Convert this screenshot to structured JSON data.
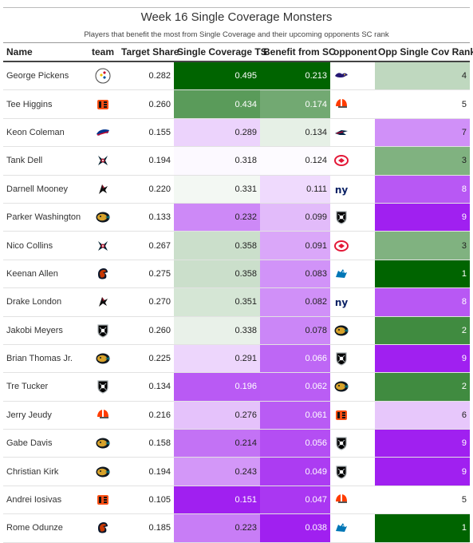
{
  "title": "Week 16 Single Coverage Monsters",
  "subtitle": "Players that benefit the most from Single Coverage and their upcoming opponents SC rank",
  "columns": [
    "Name",
    "team",
    "Target Share",
    "Single Coverage TS",
    "Benefit from SC",
    "opponent",
    "Opp Single Cov Rank"
  ],
  "rows": [
    {
      "name": "George Pickens",
      "team": "steelers-logo",
      "target_share": "0.282",
      "sc_ts": "0.495",
      "benefit": "0.213",
      "opponent": "ravens-logo",
      "opp_rank": "4"
    },
    {
      "name": "Tee Higgins",
      "team": "bengals-logo",
      "target_share": "0.260",
      "sc_ts": "0.434",
      "benefit": "0.174",
      "opponent": "browns-logo",
      "opp_rank": "5"
    },
    {
      "name": "Keon Coleman",
      "team": "bills-logo",
      "target_share": "0.155",
      "sc_ts": "0.289",
      "benefit": "0.134",
      "opponent": "patriots-logo",
      "opp_rank": "7"
    },
    {
      "name": "Tank Dell",
      "team": "texans-logo",
      "target_share": "0.194",
      "sc_ts": "0.318",
      "benefit": "0.124",
      "opponent": "chiefs-logo",
      "opp_rank": "3"
    },
    {
      "name": "Darnell Mooney",
      "team": "falcons-logo",
      "target_share": "0.220",
      "sc_ts": "0.331",
      "benefit": "0.111",
      "opponent": "giants-logo",
      "opp_rank": "8"
    },
    {
      "name": "Parker Washington",
      "team": "jaguars-logo",
      "target_share": "0.133",
      "sc_ts": "0.232",
      "benefit": "0.099",
      "opponent": "raiders-logo",
      "opp_rank": "9"
    },
    {
      "name": "Nico Collins",
      "team": "texans-logo",
      "target_share": "0.267",
      "sc_ts": "0.358",
      "benefit": "0.091",
      "opponent": "chiefs-logo",
      "opp_rank": "3"
    },
    {
      "name": "Keenan Allen",
      "team": "bears-logo",
      "target_share": "0.275",
      "sc_ts": "0.358",
      "benefit": "0.083",
      "opponent": "lions-logo",
      "opp_rank": "1"
    },
    {
      "name": "Drake London",
      "team": "falcons-logo",
      "target_share": "0.270",
      "sc_ts": "0.351",
      "benefit": "0.082",
      "opponent": "giants-logo",
      "opp_rank": "8"
    },
    {
      "name": "Jakobi Meyers",
      "team": "raiders-logo",
      "target_share": "0.260",
      "sc_ts": "0.338",
      "benefit": "0.078",
      "opponent": "jaguars-logo",
      "opp_rank": "2"
    },
    {
      "name": "Brian Thomas Jr.",
      "team": "jaguars-logo",
      "target_share": "0.225",
      "sc_ts": "0.291",
      "benefit": "0.066",
      "opponent": "raiders-logo",
      "opp_rank": "9"
    },
    {
      "name": "Tre Tucker",
      "team": "raiders-logo",
      "target_share": "0.134",
      "sc_ts": "0.196",
      "benefit": "0.062",
      "opponent": "jaguars-logo",
      "opp_rank": "2"
    },
    {
      "name": "Jerry Jeudy",
      "team": "browns-logo",
      "target_share": "0.216",
      "sc_ts": "0.276",
      "benefit": "0.061",
      "opponent": "bengals-logo",
      "opp_rank": "6"
    },
    {
      "name": "Gabe Davis",
      "team": "jaguars-logo",
      "target_share": "0.158",
      "sc_ts": "0.214",
      "benefit": "0.056",
      "opponent": "raiders-logo",
      "opp_rank": "9"
    },
    {
      "name": "Christian Kirk",
      "team": "jaguars-logo",
      "target_share": "0.194",
      "sc_ts": "0.243",
      "benefit": "0.049",
      "opponent": "raiders-logo",
      "opp_rank": "9"
    },
    {
      "name": "Andrei Iosivas",
      "team": "bengals-logo",
      "target_share": "0.105",
      "sc_ts": "0.151",
      "benefit": "0.047",
      "opponent": "browns-logo",
      "opp_rank": "5"
    },
    {
      "name": "Rome Odunze",
      "team": "bears-logo",
      "target_share": "0.185",
      "sc_ts": "0.223",
      "benefit": "0.038",
      "opponent": "lions-logo",
      "opp_rank": "1"
    }
  ],
  "chart_data": {
    "type": "table",
    "title": "Week 16 Single Coverage Monsters",
    "subtitle": "Players that benefit the most from Single Coverage and their upcoming opponents SC rank",
    "columns": [
      "Name",
      "team",
      "Target Share",
      "Single Coverage TS",
      "Benefit from SC",
      "opponent",
      "Opp Single Cov Rank"
    ],
    "color_scale": {
      "low": "#a020f0",
      "mid": "#ffffff",
      "high": "#006400"
    },
    "sc_ts_range": [
      0.151,
      0.495
    ],
    "benefit_range": [
      0.038,
      0.213
    ],
    "rank_range": [
      1,
      9
    ]
  },
  "colors": {
    "purple": "#a020f0",
    "white": "#ffffff",
    "green": "#006400"
  }
}
